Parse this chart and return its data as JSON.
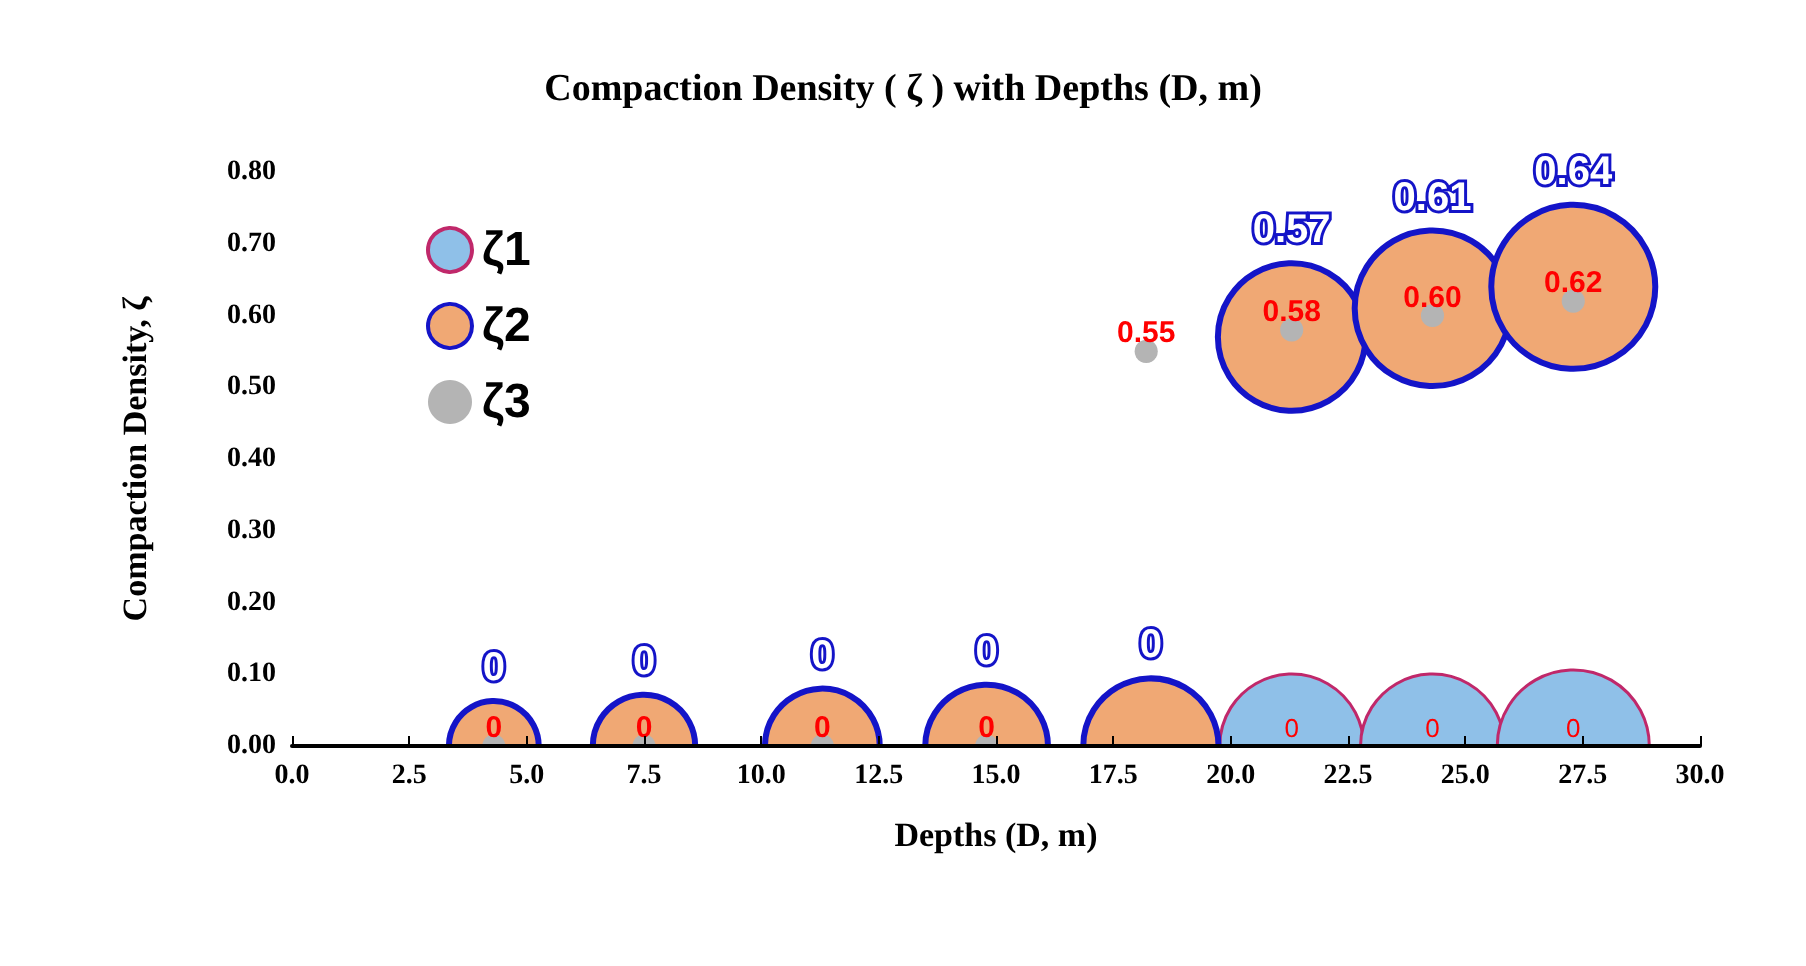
{
  "chart_data": {
    "type": "bubble",
    "title": "Compaction Density ( ζ ) with Depths (D, m)",
    "xlabel": "Depths (D, m)",
    "ylabel": "Compaction Density, ζ",
    "series": [
      {
        "name": "ζ1",
        "color": "#8fc0e8",
        "x": [
          21.3,
          24.3,
          27.3
        ],
        "values": [
          0,
          0,
          0
        ],
        "sizes": [
          0.77,
          0.77,
          0.86
        ],
        "value_labels": [
          "0",
          "0",
          "0"
        ]
      },
      {
        "name": "ζ2",
        "color": "#f0a874",
        "x": [
          4.3,
          7.5,
          11.3,
          14.8,
          18.3,
          21.3,
          24.3,
          27.3
        ],
        "values": [
          0,
          0,
          0,
          0,
          0,
          0.57,
          0.61,
          0.64
        ],
        "sizes": [
          0.3,
          0.39,
          0.49,
          0.56,
          0.68,
          0.81,
          0.9,
          1
        ],
        "value_labels": [
          "0",
          "0",
          "0",
          "0",
          "0",
          "0.57",
          "0.61",
          "0.64"
        ]
      },
      {
        "name": "ζ3",
        "color": "#b4b4b4",
        "x": [
          4.3,
          7.5,
          11.3,
          14.8,
          18.2,
          21.3,
          24.3,
          27.3
        ],
        "values": [
          0,
          0,
          0,
          0,
          0.55,
          0.58,
          0.6,
          0.62
        ],
        "sizes": [
          0.02,
          0.02,
          0.02,
          0.02,
          0.02,
          0.02,
          0.02,
          0.02
        ],
        "value_labels": [
          "0",
          "0",
          "0",
          "0",
          "0.55",
          "0.58",
          "0.60",
          "0.62"
        ]
      }
    ],
    "xlim": [
      0,
      30
    ],
    "xticks": [
      {
        "value": 0,
        "label": "0.0"
      },
      {
        "value": 2.5,
        "label": "2.5"
      },
      {
        "value": 5,
        "label": "5.0"
      },
      {
        "value": 7.5,
        "label": "7.5"
      },
      {
        "value": 10,
        "label": "10.0"
      },
      {
        "value": 12.5,
        "label": "12.5"
      },
      {
        "value": 15,
        "label": "15.0"
      },
      {
        "value": 17.5,
        "label": "17.5"
      },
      {
        "value": 20,
        "label": "20.0"
      },
      {
        "value": 22.5,
        "label": "22.5"
      },
      {
        "value": 25,
        "label": "25.0"
      },
      {
        "value": 27.5,
        "label": "27.5"
      },
      {
        "value": 30,
        "label": "30.0"
      }
    ],
    "ylim": [
      0,
      0.8
    ],
    "yticks": [
      {
        "value": 0,
        "label": "0.00"
      },
      {
        "value": 0.1,
        "label": "0.10"
      },
      {
        "value": 0.2,
        "label": "0.20"
      },
      {
        "value": 0.3,
        "label": "0.30"
      },
      {
        "value": 0.4,
        "label": "0.40"
      },
      {
        "value": 0.5,
        "label": "0.50"
      },
      {
        "value": 0.6,
        "label": "0.60"
      },
      {
        "value": 0.7,
        "label": "0.70"
      },
      {
        "value": 0.8,
        "label": "0.80"
      }
    ],
    "grid": false,
    "legend": "top left"
  }
}
